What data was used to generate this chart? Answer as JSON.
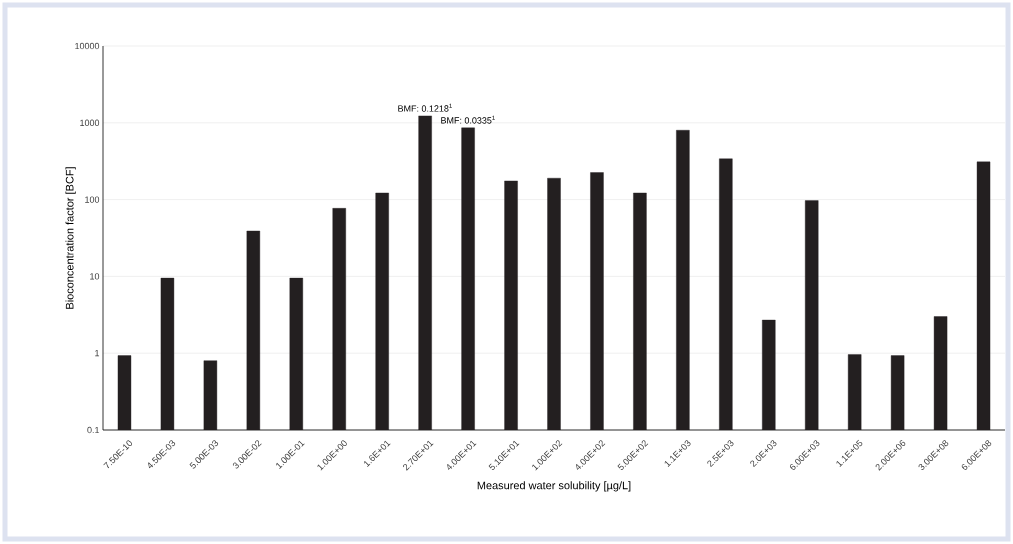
{
  "chart_data": {
    "type": "bar",
    "xlabel": "Measured water solubility [µg/L]",
    "ylabel": "Bioconcentration factor [BCF]",
    "categories": [
      "7.50E-10",
      "4.50E-03",
      "5.00E-03",
      "3.00E-02",
      "1.00E-01",
      "1.00E+00",
      "1.6E+01",
      "2.70E+01",
      "4.00E+01",
      "5.10E+01",
      "1.00E+02",
      "4.00E+02",
      "5.00E+02",
      "1.1E+03",
      "2.5E+03",
      "2.0E+03",
      "6.00E+03",
      "1.1E+05",
      "2.00E+06",
      "3.00E+08",
      "6.00E+08"
    ],
    "values": [
      0.93,
      9.5,
      0.8,
      39,
      9.5,
      77,
      122,
      1230,
      860,
      175,
      190,
      225,
      122,
      800,
      340,
      2.7,
      97,
      0.96,
      0.93,
      3.0,
      310
    ],
    "color": "#231f20",
    "log": "y",
    "ylim": [
      0.1,
      10000
    ],
    "yticks": [
      0.1,
      1,
      10,
      100,
      1000,
      10000
    ],
    "grid": "y",
    "annotations": [
      {
        "text": "BMF: 0.1218$^{1}$",
        "x": "2.70E+01",
        "y": 1230
      },
      {
        "text": "BMF: 0.0335$^{1}$",
        "x": "4.00E+01",
        "y": 860
      }
    ]
  }
}
